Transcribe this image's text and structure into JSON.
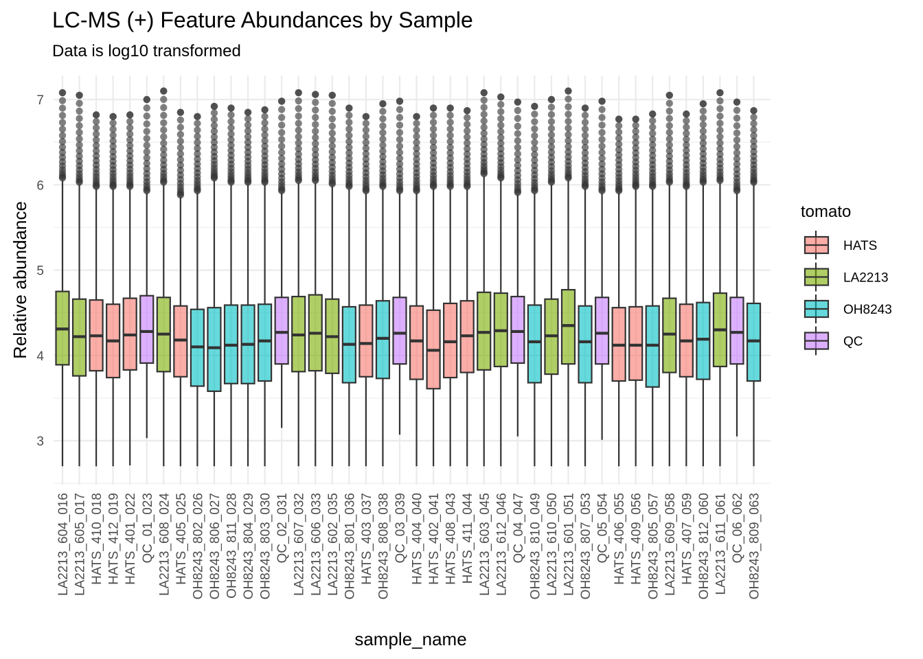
{
  "chart_data": {
    "type": "box",
    "title": "LC-MS (+) Feature Abundances by Sample",
    "subtitle": "Data is log10 transformed",
    "xlabel": "sample_name",
    "ylabel": "Relative abundance",
    "ylim": [
      2.5,
      7.3
    ],
    "yticks": [
      3,
      4,
      5,
      6,
      7
    ],
    "grid": true,
    "legend": {
      "title": "tomato",
      "position": "right"
    },
    "groups": [
      {
        "name": "HATS",
        "color": "#F8766D"
      },
      {
        "name": "LA2213",
        "color": "#7CAE00"
      },
      {
        "name": "OH8243",
        "color": "#00BFC4"
      },
      {
        "name": "QC",
        "color": "#C77CFF"
      }
    ],
    "samples": [
      {
        "name": "LA2213_604_016",
        "group": "LA2213",
        "q1": 3.89,
        "median": 4.31,
        "q3": 4.75,
        "whisker_low": 2.7,
        "whisker_high": 6.05,
        "outlier_max": 7.08
      },
      {
        "name": "LA2213_605_017",
        "group": "LA2213",
        "q1": 3.76,
        "median": 4.22,
        "q3": 4.66,
        "whisker_low": 2.7,
        "whisker_high": 6.0,
        "outlier_max": 7.05
      },
      {
        "name": "HATS_410_018",
        "group": "HATS",
        "q1": 3.82,
        "median": 4.23,
        "q3": 4.65,
        "whisker_low": 2.7,
        "whisker_high": 5.95,
        "outlier_max": 6.82
      },
      {
        "name": "HATS_412_019",
        "group": "HATS",
        "q1": 3.74,
        "median": 4.17,
        "q3": 4.6,
        "whisker_low": 2.7,
        "whisker_high": 5.95,
        "outlier_max": 6.8
      },
      {
        "name": "HATS_401_022",
        "group": "HATS",
        "q1": 3.83,
        "median": 4.24,
        "q3": 4.67,
        "whisker_low": 2.71,
        "whisker_high": 5.95,
        "outlier_max": 6.82
      },
      {
        "name": "QC_01_023",
        "group": "QC",
        "q1": 3.91,
        "median": 4.28,
        "q3": 4.7,
        "whisker_low": 3.03,
        "whisker_high": 5.9,
        "outlier_max": 7.0
      },
      {
        "name": "LA2213_608_024",
        "group": "LA2213",
        "q1": 3.81,
        "median": 4.25,
        "q3": 4.68,
        "whisker_low": 2.7,
        "whisker_high": 6.0,
        "outlier_max": 7.1
      },
      {
        "name": "HATS_405_025",
        "group": "HATS",
        "q1": 3.75,
        "median": 4.18,
        "q3": 4.58,
        "whisker_low": 2.7,
        "whisker_high": 5.85,
        "outlier_max": 6.85
      },
      {
        "name": "OH8243_802_026",
        "group": "OH8243",
        "q1": 3.64,
        "median": 4.1,
        "q3": 4.54,
        "whisker_low": 2.7,
        "whisker_high": 5.9,
        "outlier_max": 6.8
      },
      {
        "name": "OH8243_806_027",
        "group": "OH8243",
        "q1": 3.58,
        "median": 4.09,
        "q3": 4.56,
        "whisker_low": 2.7,
        "whisker_high": 6.05,
        "outlier_max": 6.92
      },
      {
        "name": "OH8243_811_028",
        "group": "OH8243",
        "q1": 3.67,
        "median": 4.12,
        "q3": 4.59,
        "whisker_low": 2.7,
        "whisker_high": 6.0,
        "outlier_max": 6.9
      },
      {
        "name": "OH8243_804_029",
        "group": "OH8243",
        "q1": 3.67,
        "median": 4.13,
        "q3": 4.59,
        "whisker_low": 2.7,
        "whisker_high": 6.0,
        "outlier_max": 6.85
      },
      {
        "name": "OH8243_803_030",
        "group": "OH8243",
        "q1": 3.7,
        "median": 4.17,
        "q3": 4.6,
        "whisker_low": 2.7,
        "whisker_high": 6.0,
        "outlier_max": 6.88
      },
      {
        "name": "QC_02_031",
        "group": "QC",
        "q1": 3.9,
        "median": 4.27,
        "q3": 4.68,
        "whisker_low": 3.15,
        "whisker_high": 5.9,
        "outlier_max": 6.98
      },
      {
        "name": "LA2213_607_032",
        "group": "LA2213",
        "q1": 3.81,
        "median": 4.24,
        "q3": 4.69,
        "whisker_low": 2.7,
        "whisker_high": 6.02,
        "outlier_max": 7.08
      },
      {
        "name": "LA2213_606_033",
        "group": "LA2213",
        "q1": 3.82,
        "median": 4.26,
        "q3": 4.71,
        "whisker_low": 2.7,
        "whisker_high": 6.02,
        "outlier_max": 7.06
      },
      {
        "name": "LA2213_602_035",
        "group": "LA2213",
        "q1": 3.79,
        "median": 4.22,
        "q3": 4.66,
        "whisker_low": 2.7,
        "whisker_high": 5.98,
        "outlier_max": 7.05
      },
      {
        "name": "OH8243_801_036",
        "group": "OH8243",
        "q1": 3.68,
        "median": 4.13,
        "q3": 4.57,
        "whisker_low": 2.7,
        "whisker_high": 5.95,
        "outlier_max": 6.9
      },
      {
        "name": "HATS_403_037",
        "group": "HATS",
        "q1": 3.75,
        "median": 4.14,
        "q3": 4.59,
        "whisker_low": 2.7,
        "whisker_high": 5.9,
        "outlier_max": 6.8
      },
      {
        "name": "OH8243_808_038",
        "group": "OH8243",
        "q1": 3.73,
        "median": 4.2,
        "q3": 4.64,
        "whisker_low": 2.7,
        "whisker_high": 5.95,
        "outlier_max": 6.95
      },
      {
        "name": "QC_03_039",
        "group": "QC",
        "q1": 3.9,
        "median": 4.26,
        "q3": 4.68,
        "whisker_low": 3.07,
        "whisker_high": 5.9,
        "outlier_max": 6.98
      },
      {
        "name": "HATS_404_040",
        "group": "HATS",
        "q1": 3.72,
        "median": 4.17,
        "q3": 4.58,
        "whisker_low": 2.7,
        "whisker_high": 5.9,
        "outlier_max": 6.8
      },
      {
        "name": "HATS_402_041",
        "group": "HATS",
        "q1": 3.61,
        "median": 4.06,
        "q3": 4.53,
        "whisker_low": 2.7,
        "whisker_high": 5.95,
        "outlier_max": 6.9
      },
      {
        "name": "HATS_408_043",
        "group": "HATS",
        "q1": 3.74,
        "median": 4.16,
        "q3": 4.61,
        "whisker_low": 2.7,
        "whisker_high": 5.95,
        "outlier_max": 6.9
      },
      {
        "name": "HATS_411_044",
        "group": "HATS",
        "q1": 3.8,
        "median": 4.23,
        "q3": 4.64,
        "whisker_low": 2.7,
        "whisker_high": 5.95,
        "outlier_max": 6.87
      },
      {
        "name": "LA2213_603_045",
        "group": "LA2213",
        "q1": 3.83,
        "median": 4.27,
        "q3": 4.74,
        "whisker_low": 2.7,
        "whisker_high": 6.1,
        "outlier_max": 7.08
      },
      {
        "name": "LA2213_612_046",
        "group": "LA2213",
        "q1": 3.87,
        "median": 4.29,
        "q3": 4.73,
        "whisker_low": 2.7,
        "whisker_high": 6.05,
        "outlier_max": 7.03
      },
      {
        "name": "QC_04_047",
        "group": "QC",
        "q1": 3.91,
        "median": 4.28,
        "q3": 4.69,
        "whisker_low": 3.05,
        "whisker_high": 5.88,
        "outlier_max": 6.97
      },
      {
        "name": "OH8243_810_049",
        "group": "OH8243",
        "q1": 3.68,
        "median": 4.16,
        "q3": 4.59,
        "whisker_low": 2.7,
        "whisker_high": 5.9,
        "outlier_max": 6.92
      },
      {
        "name": "LA2213_610_050",
        "group": "LA2213",
        "q1": 3.78,
        "median": 4.23,
        "q3": 4.66,
        "whisker_low": 2.7,
        "whisker_high": 6.0,
        "outlier_max": 7.0
      },
      {
        "name": "LA2213_601_051",
        "group": "LA2213",
        "q1": 3.9,
        "median": 4.35,
        "q3": 4.77,
        "whisker_low": 2.7,
        "whisker_high": 6.05,
        "outlier_max": 7.1
      },
      {
        "name": "OH8243_807_053",
        "group": "OH8243",
        "q1": 3.68,
        "median": 4.16,
        "q3": 4.58,
        "whisker_low": 2.7,
        "whisker_high": 5.95,
        "outlier_max": 6.9
      },
      {
        "name": "QC_05_054",
        "group": "QC",
        "q1": 3.9,
        "median": 4.26,
        "q3": 4.68,
        "whisker_low": 3.01,
        "whisker_high": 5.9,
        "outlier_max": 6.98
      },
      {
        "name": "HATS_406_055",
        "group": "HATS",
        "q1": 3.7,
        "median": 4.12,
        "q3": 4.56,
        "whisker_low": 2.7,
        "whisker_high": 5.9,
        "outlier_max": 6.77
      },
      {
        "name": "HATS_409_056",
        "group": "HATS",
        "q1": 3.71,
        "median": 4.12,
        "q3": 4.57,
        "whisker_low": 2.7,
        "whisker_high": 5.95,
        "outlier_max": 6.77
      },
      {
        "name": "OH8243_805_057",
        "group": "OH8243",
        "q1": 3.63,
        "median": 4.12,
        "q3": 4.58,
        "whisker_low": 2.7,
        "whisker_high": 5.95,
        "outlier_max": 6.83
      },
      {
        "name": "LA2213_609_058",
        "group": "LA2213",
        "q1": 3.8,
        "median": 4.25,
        "q3": 4.67,
        "whisker_low": 2.7,
        "whisker_high": 6.0,
        "outlier_max": 7.05
      },
      {
        "name": "HATS_407_059",
        "group": "HATS",
        "q1": 3.75,
        "median": 4.17,
        "q3": 4.6,
        "whisker_low": 2.7,
        "whisker_high": 5.95,
        "outlier_max": 6.83
      },
      {
        "name": "OH8243_812_060",
        "group": "OH8243",
        "q1": 3.72,
        "median": 4.19,
        "q3": 4.62,
        "whisker_low": 2.7,
        "whisker_high": 6.0,
        "outlier_max": 6.95
      },
      {
        "name": "LA2213_611_061",
        "group": "LA2213",
        "q1": 3.87,
        "median": 4.3,
        "q3": 4.73,
        "whisker_low": 2.7,
        "whisker_high": 6.02,
        "outlier_max": 7.08
      },
      {
        "name": "QC_06_062",
        "group": "QC",
        "q1": 3.9,
        "median": 4.27,
        "q3": 4.68,
        "whisker_low": 3.05,
        "whisker_high": 5.9,
        "outlier_max": 6.97
      },
      {
        "name": "OH8243_809_063",
        "group": "OH8243",
        "q1": 3.7,
        "median": 4.17,
        "q3": 4.61,
        "whisker_low": 2.7,
        "whisker_high": 6.0,
        "outlier_max": 6.87
      }
    ]
  }
}
